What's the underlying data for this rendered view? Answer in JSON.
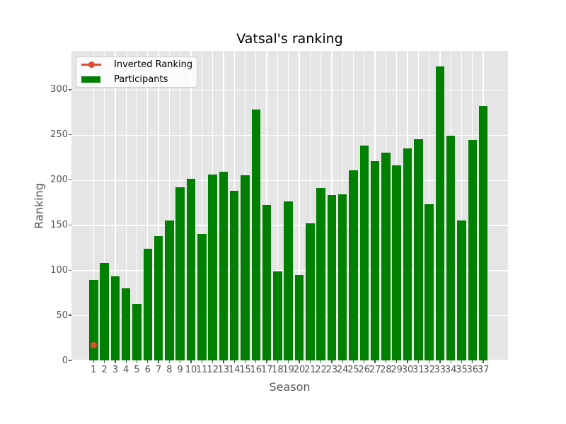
{
  "chart_data": {
    "type": "bar",
    "title": "Vatsal's ranking",
    "xlabel": "Season",
    "ylabel": "Ranking",
    "categories": [
      "1",
      "2",
      "3",
      "4",
      "5",
      "6",
      "7",
      "8",
      "9",
      "10",
      "11",
      "12",
      "13",
      "14",
      "15",
      "16",
      "17",
      "18",
      "19",
      "20",
      "21",
      "22",
      "23",
      "24",
      "25",
      "26",
      "27",
      "28",
      "29",
      "30",
      "31",
      "32",
      "33",
      "34",
      "35",
      "36",
      "37"
    ],
    "yticks": [
      0,
      50,
      100,
      150,
      200,
      250,
      300
    ],
    "ylim": [
      0,
      343
    ],
    "grid": true,
    "legend_position": "upper left",
    "colors": {
      "plot_background": "#e5e5e5",
      "grid": "#ffffff",
      "tick_text": "#555555",
      "bar": "#008000",
      "line": "#E24A33"
    },
    "series": [
      {
        "name": "Inverted Ranking",
        "type": "line",
        "color": "#E24A33",
        "points": [
          {
            "x": 1,
            "y": 17
          }
        ]
      },
      {
        "name": "Participants",
        "type": "bar",
        "color": "#008000",
        "values": [
          89,
          108,
          93,
          80,
          63,
          124,
          138,
          155,
          192,
          201,
          140,
          206,
          209,
          188,
          205,
          278,
          172,
          99,
          176,
          95,
          152,
          191,
          183,
          184,
          211,
          238,
          221,
          230,
          216,
          235,
          245,
          173,
          326,
          249,
          155,
          244,
          282
        ]
      }
    ]
  }
}
